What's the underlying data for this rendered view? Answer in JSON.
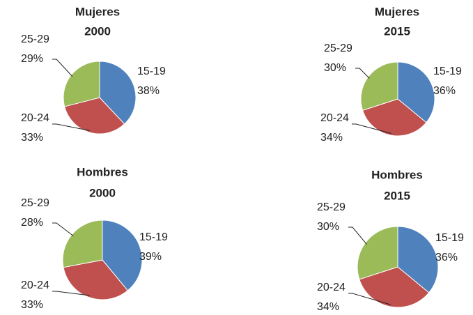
{
  "chart_data": [
    {
      "type": "pie",
      "title": [
        "Mujeres",
        "2000"
      ],
      "categories": [
        "15-19",
        "20-24",
        "25-29"
      ],
      "values": [
        38,
        33,
        29
      ],
      "value_labels": [
        "38%",
        "33%",
        "29%"
      ],
      "colors": [
        "#4f81bd",
        "#c0504d",
        "#9bbb59"
      ]
    },
    {
      "type": "pie",
      "title": [
        "Mujeres",
        "2015"
      ],
      "categories": [
        "15-19",
        "20-24",
        "25-29"
      ],
      "values": [
        36,
        34,
        30
      ],
      "value_labels": [
        "36%",
        "34%",
        "30%"
      ],
      "colors": [
        "#4f81bd",
        "#c0504d",
        "#9bbb59"
      ]
    },
    {
      "type": "pie",
      "title": [
        "Hombres",
        "2000"
      ],
      "categories": [
        "15-19",
        "20-24",
        "25-29"
      ],
      "values": [
        39,
        33,
        28
      ],
      "value_labels": [
        "39%",
        "33%",
        "28%"
      ],
      "colors": [
        "#4f81bd",
        "#c0504d",
        "#9bbb59"
      ]
    },
    {
      "type": "pie",
      "title": [
        "Hombres",
        "2015"
      ],
      "categories": [
        "15-19",
        "20-24",
        "25-29"
      ],
      "values": [
        36,
        34,
        30
      ],
      "value_labels": [
        "36%",
        "34%",
        "30%"
      ],
      "colors": [
        "#4f81bd",
        "#c0504d",
        "#9bbb59"
      ]
    }
  ]
}
